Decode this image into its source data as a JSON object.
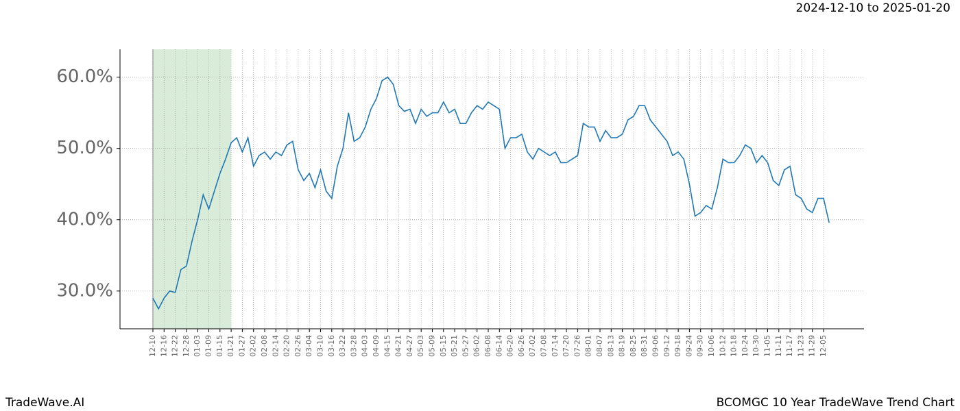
{
  "chart_data": {
    "type": "line",
    "header": "2024-12-10 to 2025-01-20",
    "footer_left": "TradeWave.AI",
    "footer_right": "BCOMGC 10 Year TradeWave Trend Chart",
    "categories": [
      "12-10",
      null,
      "12-16",
      null,
      "12-22",
      null,
      "12-28",
      null,
      "01-03",
      null,
      "01-09",
      null,
      "01-15",
      null,
      "01-21",
      null,
      "01-27",
      null,
      "02-02",
      null,
      "02-08",
      null,
      "02-14",
      null,
      "02-20",
      null,
      "02-26",
      null,
      "03-04",
      null,
      "03-10",
      null,
      "03-16",
      null,
      "03-22",
      null,
      "03-28",
      null,
      "04-03",
      null,
      "04-09",
      null,
      "04-15",
      null,
      "04-21",
      null,
      "04-27",
      null,
      "05-03",
      null,
      "05-09",
      null,
      "05-15",
      null,
      "05-21",
      null,
      "05-27",
      null,
      "06-02",
      null,
      "06-08",
      null,
      "06-14",
      null,
      "06-20",
      null,
      "06-26",
      null,
      "07-02",
      null,
      "07-08",
      null,
      "07-14",
      null,
      "07-20",
      null,
      "07-26",
      null,
      "08-01",
      null,
      "08-07",
      null,
      "08-13",
      null,
      "08-19",
      null,
      "08-25",
      null,
      "08-31",
      null,
      "09-06",
      null,
      "09-12",
      null,
      "09-18",
      null,
      "09-24",
      null,
      "09-30",
      null,
      "10-06",
      null,
      "10-12",
      null,
      "10-18",
      null,
      "10-24",
      null,
      "10-30",
      null,
      "11-05",
      null,
      "11-11",
      null,
      "11-17",
      null,
      "11-23",
      null,
      "11-29",
      null,
      "12-05",
      null
    ],
    "values": [
      29.0,
      27.5,
      29.0,
      30.0,
      29.8,
      33.0,
      33.5,
      37.0,
      40.0,
      43.5,
      41.5,
      44.0,
      46.5,
      48.5,
      50.8,
      51.5,
      49.5,
      51.5,
      47.5,
      49.0,
      49.5,
      48.5,
      49.5,
      49.0,
      50.5,
      51.0,
      47.0,
      45.5,
      46.5,
      44.5,
      47.0,
      44.0,
      43.0,
      47.5,
      50.0,
      55.0,
      51.0,
      51.5,
      53.0,
      55.5,
      57.0,
      59.5,
      60.0,
      59.0,
      56.0,
      55.2,
      55.5,
      53.5,
      55.5,
      54.5,
      55.0,
      55.0,
      56.5,
      55.0,
      55.5,
      53.5,
      53.5,
      55.0,
      56.0,
      55.5,
      56.5,
      56.0,
      55.5,
      50.0,
      51.5,
      51.5,
      52.0,
      49.5,
      48.5,
      50.0,
      49.5,
      49.0,
      49.5,
      48.0,
      48.0,
      48.5,
      49.0,
      53.5,
      53.0,
      53.0,
      51.0,
      52.5,
      51.5,
      51.5,
      52.0,
      54.0,
      54.5,
      56.0,
      56.0,
      54.0,
      53.0,
      52.0,
      51.0,
      49.0,
      49.5,
      48.5,
      45.0,
      40.5,
      41.0,
      42.0,
      41.5,
      44.5,
      48.5,
      48.0,
      48.0,
      49.0,
      50.5,
      50.0,
      48.0,
      49.0,
      48.0,
      45.5,
      44.8,
      47.0,
      47.5,
      43.5,
      43.0,
      41.5,
      41.0,
      43.0,
      43.0,
      39.6
    ],
    "color": "#1f77b4",
    "shaded_span": [
      0,
      14
    ],
    "shade_color": "#d9ecd9",
    "ylim": [
      24.7,
      63.9
    ],
    "yticks": [
      {
        "value": 30,
        "label": "30.0%"
      },
      {
        "value": 40,
        "label": "40.0%"
      },
      {
        "value": 50,
        "label": "50.0%"
      },
      {
        "value": 60,
        "label": "60.0%"
      }
    ],
    "grid": true
  }
}
